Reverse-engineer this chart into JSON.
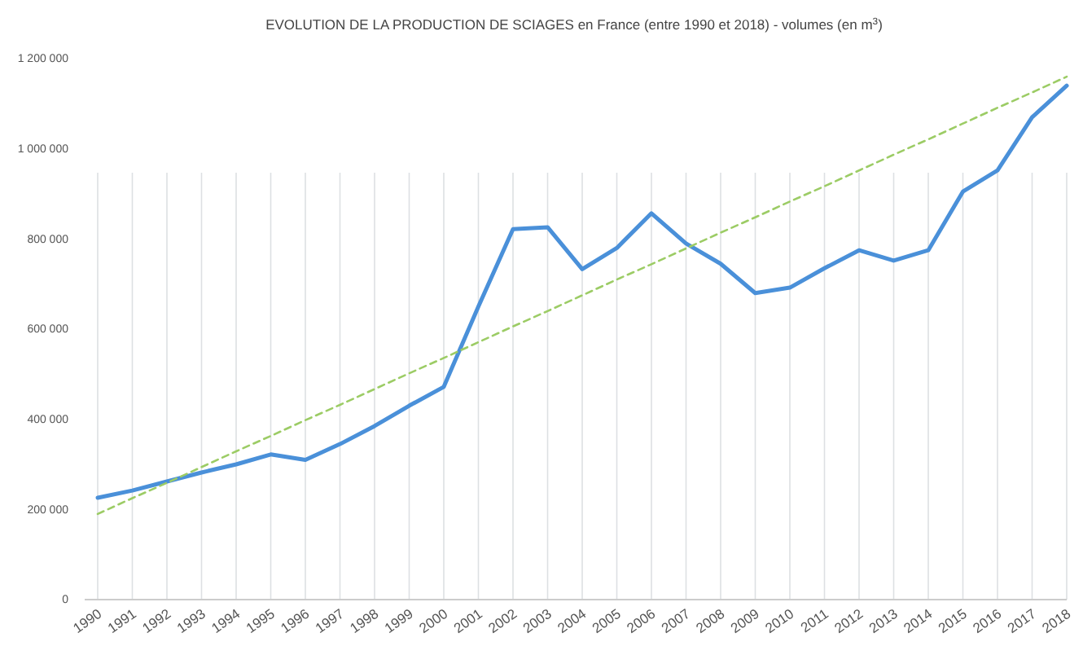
{
  "chart_data": {
    "type": "line",
    "title": "EVOLUTION DE LA PRODUCTION DE SCIAGES en France (entre 1990 et 2018) - volumes (en m$^{3}$)",
    "categories": [
      "1990",
      "1991",
      "1992",
      "1993",
      "1994",
      "1995",
      "1996",
      "1997",
      "1998",
      "1999",
      "2000",
      "2001",
      "2002",
      "2003",
      "2004",
      "2005",
      "2006",
      "2007",
      "2008",
      "2009",
      "2010",
      "2011",
      "2012",
      "2013",
      "2014",
      "2015",
      "2016",
      "2017",
      "2018"
    ],
    "series": [
      {
        "color": "#4a90d9",
        "line_style": "solid",
        "values": [
          226000,
          242000,
          262000,
          282000,
          300000,
          322000,
          310000,
          345000,
          385000,
          430000,
          472000,
          650000,
          822000,
          826000,
          733000,
          780000,
          857000,
          790000,
          745000,
          680000,
          692000,
          735000,
          775000,
          752000,
          775000,
          905000,
          952000,
          1070000,
          1140000
        ]
      },
      {
        "type": "line",
        "color": "#9ccc65",
        "line_style": "dashed",
        "values": [
          190000,
          225000,
          259000,
          294000,
          329000,
          363000,
          398000,
          432000,
          467000,
          502000,
          536000,
          571000,
          606000,
          640000,
          675000,
          710000,
          744000,
          779000,
          814000,
          848000,
          883000,
          917000,
          952000,
          987000,
          1021000,
          1056000,
          1091000,
          1125000,
          1160000
        ]
      }
    ],
    "ylim": [
      0,
      1200000
    ],
    "yticks": [
      {
        "value": 0,
        "label": "0"
      },
      {
        "value": 200000,
        "label": "200 000"
      },
      {
        "value": 400000,
        "label": "400 000"
      },
      {
        "value": 600000,
        "label": "600 000"
      },
      {
        "value": 800000,
        "label": "800 000"
      },
      {
        "value": 1000000,
        "label": "1 000 000"
      },
      {
        "value": 1200000,
        "label": "1 200 000"
      }
    ],
    "grid": "x",
    "marker": "none"
  }
}
